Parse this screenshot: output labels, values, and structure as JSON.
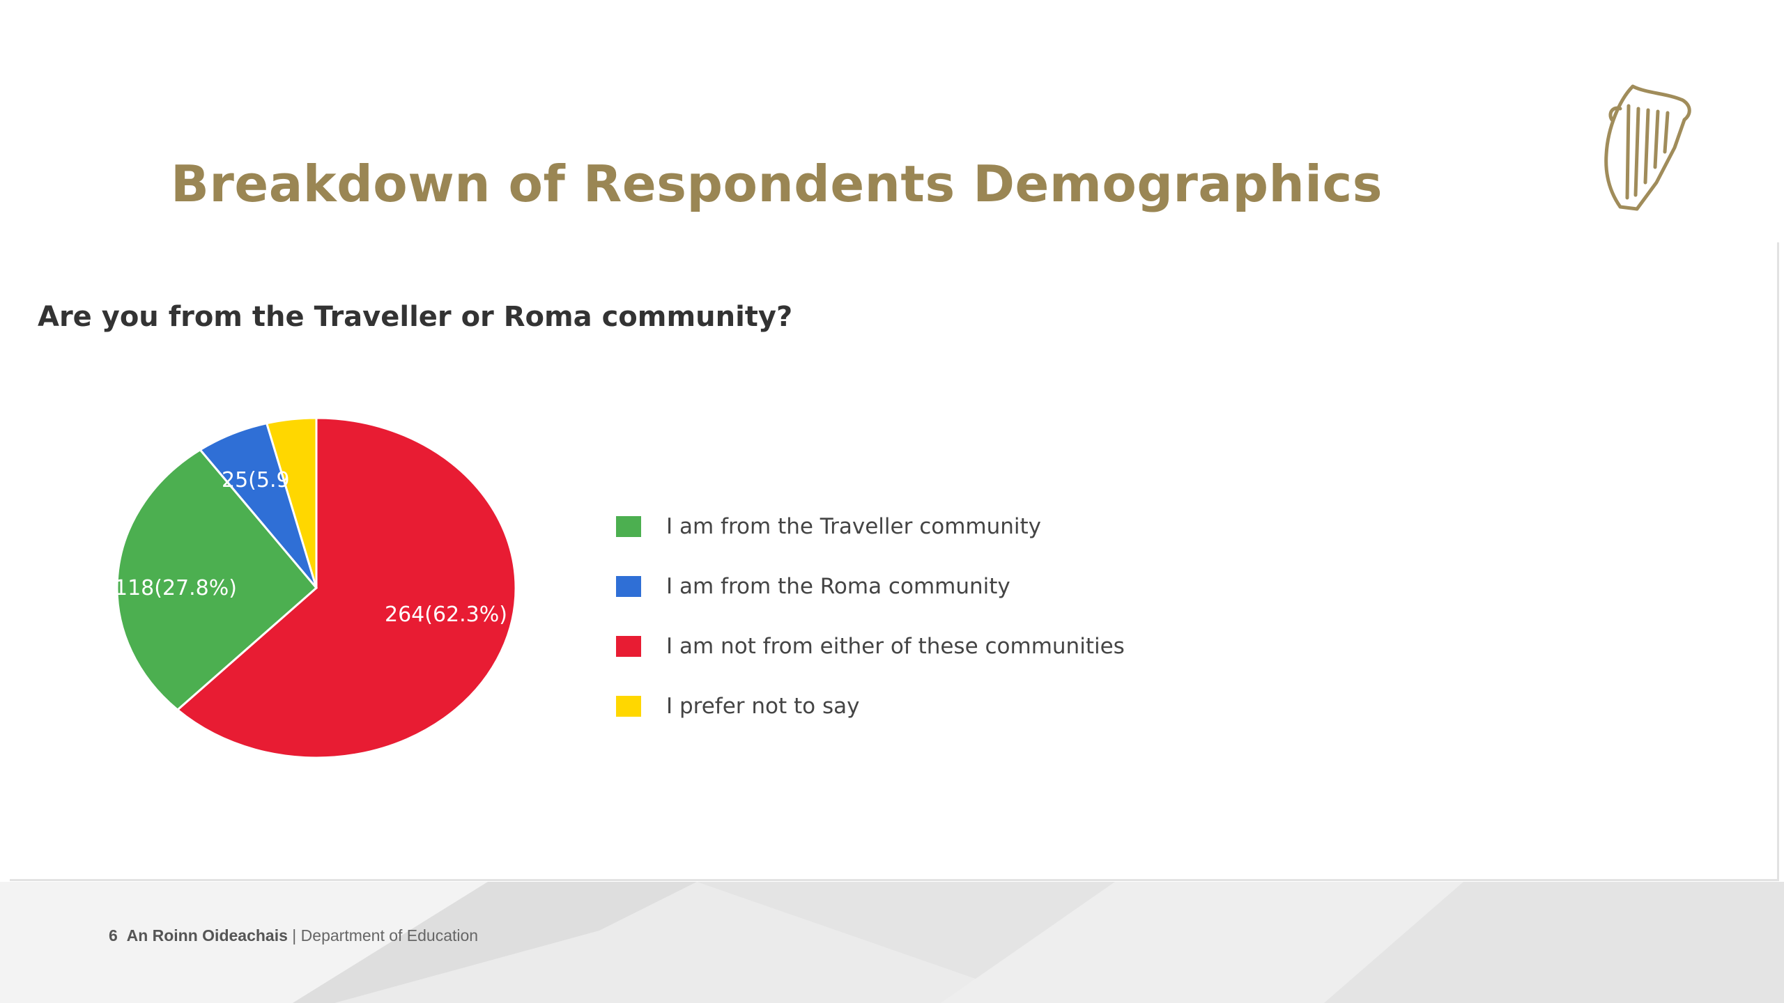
{
  "slide": {
    "title": "Breakdown of Respondents Demographics"
  },
  "chart_data": {
    "type": "pie",
    "title": "Are you from the Traveller or Roma community?",
    "slices": [
      {
        "label": "I am from the Traveller community",
        "value": 118,
        "display": "118(27.8%)",
        "color": "#4caf50"
      },
      {
        "label": "I am from the Roma community",
        "value": 25,
        "display": "25(5.9",
        "color": "#2f6fd6"
      },
      {
        "label": "I am not from either of these communities",
        "value": 264,
        "display": "264(62.3%)",
        "color": "#e81c33"
      },
      {
        "label": "I prefer not to say",
        "value": 17,
        "display": "",
        "color": "#ffd700"
      }
    ],
    "legend_position": "right"
  },
  "footer": {
    "page_number": "6",
    "org_irish": "An Roinn Oideachais",
    "separator": "|",
    "org_english": "Department of Education"
  }
}
